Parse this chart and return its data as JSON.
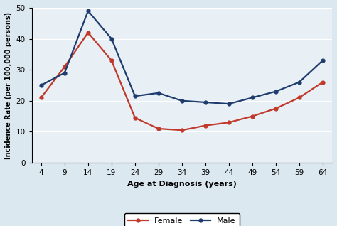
{
  "ages": [
    4,
    9,
    14,
    19,
    24,
    29,
    34,
    39,
    44,
    49,
    54,
    59,
    64
  ],
  "female": [
    21,
    31,
    42,
    33,
    14.5,
    11,
    10.5,
    12,
    13,
    15,
    17.5,
    21,
    26
  ],
  "male": [
    25,
    29,
    49,
    40,
    21.5,
    22.5,
    20,
    19.5,
    19,
    21,
    23,
    26,
    33
  ],
  "female_color": "#c0392b",
  "male_color": "#1f3c6e",
  "xlabel": "Age at Diagnosis (years)",
  "ylabel": "Incidence Rate (per 100,000 persons)",
  "ylim": [
    0,
    50
  ],
  "yticks": [
    0,
    10,
    20,
    30,
    40,
    50
  ],
  "xticks": [
    4,
    9,
    14,
    19,
    24,
    29,
    34,
    39,
    44,
    49,
    54,
    59,
    64
  ],
  "plot_bg_color": "#e8f0f5",
  "fig_bg_color": "#dce8f0",
  "legend_female": "Female",
  "legend_male": "Male",
  "marker": "o",
  "markersize": 3.5,
  "linewidth": 1.6
}
